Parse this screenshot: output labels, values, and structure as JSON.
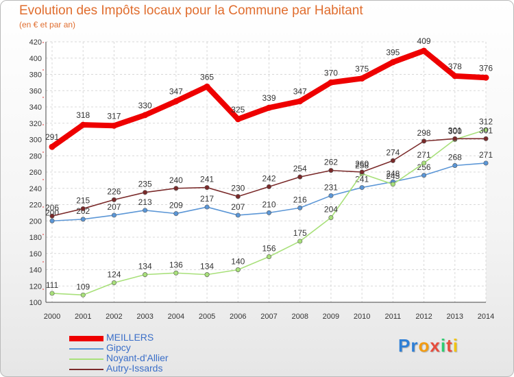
{
  "chart_data": {
    "type": "line",
    "title": "Evolution des Impôts locaux pour la Commune par Habitant",
    "subtitle": "(en € et par an)",
    "xlabel": "",
    "ylabel": "",
    "categories": [
      "2000",
      "2001",
      "2002",
      "2003",
      "2004",
      "2005",
      "2006",
      "2007",
      "2008",
      "2009",
      "2010",
      "2011",
      "2012",
      "2013",
      "2014"
    ],
    "ylim": [
      100,
      420
    ],
    "yticks": [
      100,
      120,
      140,
      160,
      180,
      200,
      220,
      240,
      260,
      280,
      300,
      320,
      340,
      360,
      380,
      400,
      420
    ],
    "grid": true,
    "legend_position": "bottom-left",
    "series": [
      {
        "name": "MEILLERS",
        "color": "#ee0000",
        "values": [
          291,
          318,
          317,
          330,
          347,
          365,
          325,
          339,
          347,
          370,
          375,
          395,
          409,
          378,
          376
        ]
      },
      {
        "name": "Gipcy",
        "color": "#5b96d6",
        "values": [
          200,
          202,
          207,
          213,
          209,
          217,
          207,
          210,
          216,
          231,
          241,
          248,
          256,
          268,
          271
        ]
      },
      {
        "name": "Noyant-d'Allier",
        "color": "#a8e07a",
        "values": [
          111,
          109,
          124,
          134,
          136,
          134,
          140,
          156,
          175,
          204,
          258,
          245,
          271,
          300,
          312
        ]
      },
      {
        "name": "Autry-Issards",
        "color": "#7a2a2a",
        "values": [
          206,
          215,
          226,
          235,
          240,
          241,
          230,
          242,
          254,
          262,
          260,
          274,
          298,
          301,
          301
        ]
      }
    ]
  },
  "logo": {
    "letters": [
      "P",
      "r",
      "o",
      "x",
      "i",
      "t",
      "i"
    ],
    "colors": [
      "#2e7fd6",
      "#2e7fd6",
      "#f39c12",
      "#e74c3c",
      "#2ecc71",
      "#e74c3c",
      "#f1c40f"
    ]
  }
}
